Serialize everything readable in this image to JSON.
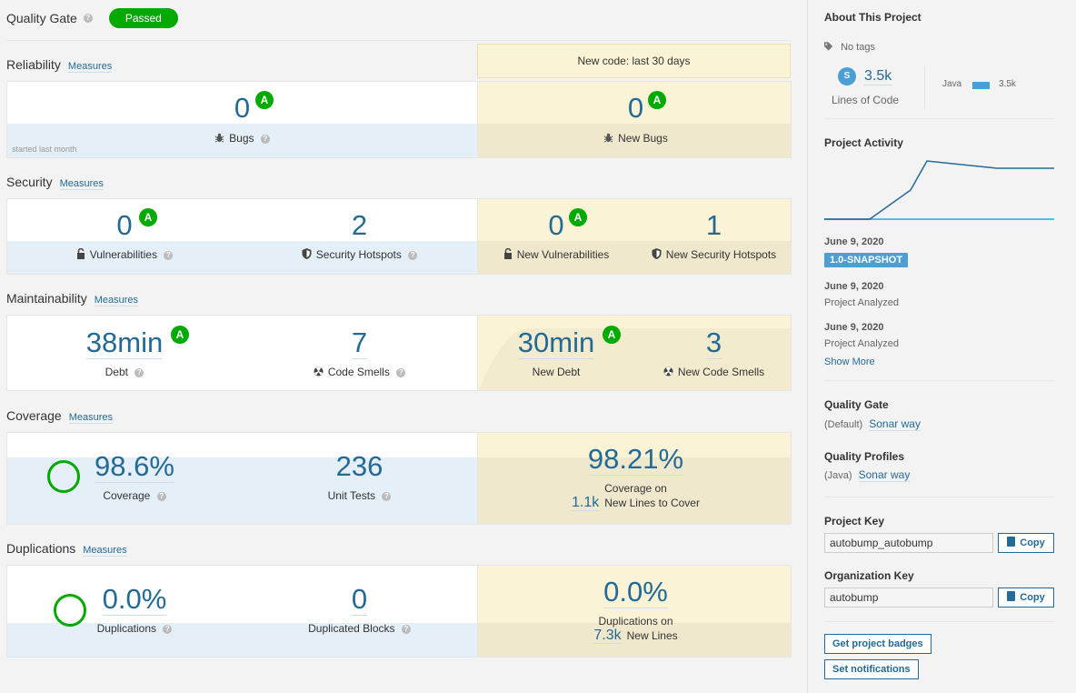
{
  "quality_gate": {
    "title": "Quality Gate",
    "help": "?",
    "status": "Passed"
  },
  "new_code_banner": "New code: last 30 days",
  "sections": {
    "reliability": {
      "title": "Reliability",
      "measures": "Measures",
      "bugs_value": "0",
      "bugs_rating": "A",
      "bugs_label": "Bugs",
      "note": "started last month",
      "new_bugs_value": "0",
      "new_bugs_rating": "A",
      "new_bugs_label": "New Bugs"
    },
    "security": {
      "title": "Security",
      "measures": "Measures",
      "vuln_value": "0",
      "vuln_rating": "A",
      "vuln_label": "Vulnerabilities",
      "hotspots_value": "2",
      "hotspots_label": "Security Hotspots",
      "new_vuln_value": "0",
      "new_vuln_rating": "A",
      "new_vuln_label": "New Vulnerabilities",
      "new_hotspots_value": "1",
      "new_hotspots_label": "New Security Hotspots"
    },
    "maintainability": {
      "title": "Maintainability",
      "measures": "Measures",
      "debt_value": "38min",
      "debt_rating": "A",
      "debt_label": "Debt",
      "smells_value": "7",
      "smells_label": "Code Smells",
      "new_debt_value": "30min",
      "new_debt_rating": "A",
      "new_debt_label": "New Debt",
      "new_smells_value": "3",
      "new_smells_label": "New Code Smells"
    },
    "coverage": {
      "title": "Coverage",
      "measures": "Measures",
      "coverage_value": "98.6%",
      "coverage_label": "Coverage",
      "tests_value": "236",
      "tests_label": "Unit Tests",
      "new_coverage_value": "98.21%",
      "new_coverage_label": "Coverage on",
      "new_lines_value": "1.1k",
      "new_lines_label": "New Lines to Cover"
    },
    "duplications": {
      "title": "Duplications",
      "measures": "Measures",
      "dup_value": "0.0%",
      "dup_label": "Duplications",
      "blocks_value": "0",
      "blocks_label": "Duplicated Blocks",
      "new_dup_value": "0.0%",
      "new_dup_label": "Duplications on",
      "new_dup_lines_value": "7.3k",
      "new_dup_lines_label": "New Lines"
    }
  },
  "sidebar": {
    "about_title": "About This Project",
    "tags": "No tags",
    "size_badge": "S",
    "loc_value": "3.5k",
    "loc_label": "Lines of Code",
    "language": "Java",
    "language_value": "3.5k",
    "activity_title": "Project Activity",
    "activity": [
      {
        "date": "June 9, 2020",
        "version": "1.0-SNAPSHOT"
      },
      {
        "date": "June 9, 2020",
        "event": "Project Analyzed"
      },
      {
        "date": "June 9, 2020",
        "event": "Project Analyzed"
      }
    ],
    "show_more": "Show More",
    "quality_gate_title": "Quality Gate",
    "quality_gate_prefix": "(Default)",
    "quality_gate_name": "Sonar way",
    "profiles_title": "Quality Profiles",
    "profiles_prefix": "(Java)",
    "profiles_name": "Sonar way",
    "project_key_title": "Project Key",
    "project_key": "autobump_autobump",
    "org_key_title": "Organization Key",
    "org_key": "autobump",
    "copy_label": "Copy",
    "badges_button": "Get project badges",
    "notifications_button": "Set notifications"
  },
  "colors": {
    "accent": "#236a97",
    "passed": "#00aa00",
    "leak_bg": "#fbf3d5",
    "activity_line": "#236a97",
    "activity_baseline": "#4bc0e0"
  }
}
